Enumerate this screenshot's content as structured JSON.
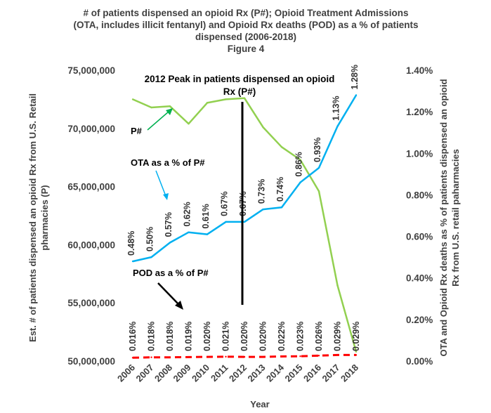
{
  "chart_data": {
    "type": "line",
    "title_lines": [
      "# of patients dispensed an opioid Rx (P#); Opioid Treatment Admissions",
      "(OTA, includes illicit fentanyl) and Opioid Rx deaths (POD) as a % of patients",
      "dispensed (2006-2018)",
      "Figure 4"
    ],
    "xlabel": "Year",
    "ylabel_left_lines": [
      "Est. # of patients dispensed an opioid Rx from  U.S. Retail",
      "pharmacies (P)"
    ],
    "ylabel_right_lines": [
      "OTA and Opioid Rx deaths as % of patients dispensed an opioid",
      "Rx from U.S. retail paharmacies"
    ],
    "x": [
      "2006",
      "2007",
      "2008",
      "2009",
      "2010",
      "2011",
      "2012",
      "2013",
      "2014",
      "2015",
      "2016",
      "2017",
      "2018"
    ],
    "y_left": {
      "min": 50000000,
      "max": 75000000,
      "ticks": [
        50000000,
        55000000,
        60000000,
        65000000,
        70000000,
        75000000
      ],
      "tick_labels": [
        "50,000,000",
        "55,000,000",
        "60,000,000",
        "65,000,000",
        "70,000,000",
        "75,000,000"
      ]
    },
    "y_right": {
      "min": 0,
      "max": 1.4,
      "ticks": [
        0,
        0.2,
        0.4,
        0.6,
        0.8,
        1.0,
        1.2,
        1.4
      ],
      "tick_labels": [
        "0.00%",
        "0.20%",
        "0.40%",
        "0.60%",
        "0.80%",
        "1.00%",
        "1.20%",
        "1.40%"
      ]
    },
    "series": [
      {
        "name": "P#",
        "axis": "left",
        "color": "#92d050",
        "style": "solid",
        "values": [
          72500000,
          71800000,
          71900000,
          70400000,
          72200000,
          72500000,
          72600000,
          70100000,
          68400000,
          67300000,
          64600000,
          56500000,
          50800000
        ]
      },
      {
        "name": "OTA as a % of P#",
        "axis": "right",
        "color": "#00b0f0",
        "style": "solid",
        "values": [
          0.48,
          0.5,
          0.57,
          0.62,
          0.61,
          0.67,
          0.67,
          0.73,
          0.74,
          0.86,
          0.93,
          1.13,
          1.28
        ],
        "labels": [
          "0.48%",
          "0.50%",
          "0.57%",
          "0.62%",
          "0.61%",
          "0.67%",
          "0.67%",
          "0.73%",
          "0.74%",
          "0.86%",
          "0.93%",
          "1.13%",
          "1.28%"
        ]
      },
      {
        "name": "POD as a % of P#",
        "axis": "right",
        "color": "#ff0000",
        "style": "dashed",
        "values": [
          0.016,
          0.018,
          0.018,
          0.019,
          0.02,
          0.021,
          0.02,
          0.02,
          0.022,
          0.023,
          0.026,
          0.029,
          0.029
        ],
        "labels": [
          "0.016%",
          "0.018%",
          "0.018%",
          "0.019%",
          "0.020%",
          "0.021%",
          "0.020%",
          "0.020%",
          "0.022%",
          "0.023%",
          "0.026%",
          "0.029%",
          "0.029%"
        ]
      }
    ],
    "annotations": [
      {
        "id": "peak",
        "lines": [
          "2012 Peak in patients dispensed an opioid",
          "Rx (P#)"
        ],
        "color": "#000000"
      },
      {
        "id": "p",
        "lines": [
          "P#"
        ],
        "color": "#00b050"
      },
      {
        "id": "ota",
        "lines": [
          "OTA as a % of P#"
        ],
        "color": "#00b0f0"
      },
      {
        "id": "pod",
        "lines": [
          "POD as a % of P#"
        ],
        "color": "#000000"
      }
    ],
    "grid": false,
    "legend": "none"
  }
}
